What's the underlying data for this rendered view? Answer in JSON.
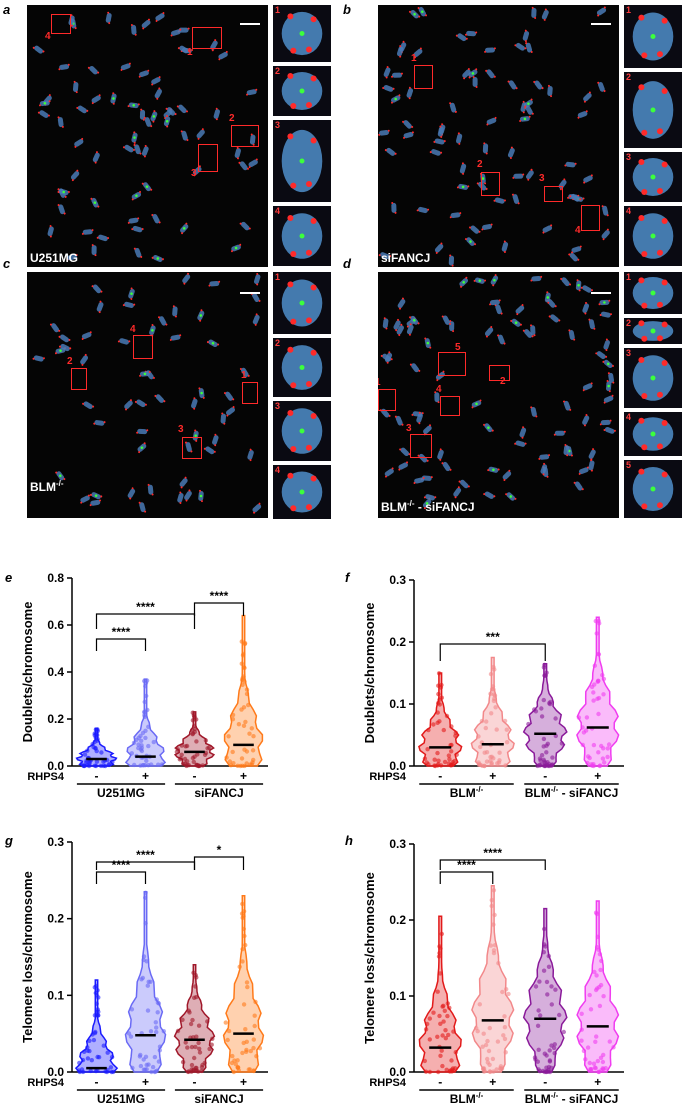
{
  "panels": {
    "a": {
      "letter": "a",
      "condition": "U251MG",
      "box_numbers": [
        "4",
        "1",
        "2",
        "3"
      ],
      "inset_numbers": [
        "1",
        "2",
        "3",
        "4"
      ]
    },
    "b": {
      "letter": "b",
      "condition": "siFANCJ",
      "box_numbers": [
        "1",
        "2",
        "3",
        "4"
      ],
      "inset_numbers": [
        "1",
        "2",
        "3",
        "4"
      ]
    },
    "c": {
      "letter": "c",
      "condition": "BLM",
      "condition_sup": "-/-",
      "box_numbers": [
        "4",
        "2",
        "1",
        "3"
      ],
      "inset_numbers": [
        "1",
        "2",
        "3",
        "4"
      ]
    },
    "d": {
      "letter": "d",
      "condition": "BLM",
      "condition_sup": "-/-",
      "condition_suffix": "- siFANCJ",
      "box_numbers": [
        "5",
        "2",
        "1",
        "4",
        "3"
      ],
      "inset_numbers": [
        "1",
        "2",
        "3",
        "4",
        "5"
      ]
    },
    "e": {
      "letter": "e"
    },
    "f": {
      "letter": "f"
    },
    "g": {
      "letter": "g"
    },
    "h": {
      "letter": "h"
    }
  },
  "chart_data": [
    {
      "id": "e",
      "type": "violin",
      "ylabel": "Doublets/chromosome",
      "ylim": [
        0,
        0.8
      ],
      "yticks": [
        "0.0",
        "0.2",
        "0.4",
        "0.6",
        "0.8"
      ],
      "treatment_label": "RHPS4",
      "treatment_marks": [
        "-",
        "+",
        "-",
        "+"
      ],
      "groups": [
        {
          "label": "U251MG",
          "span": [
            0,
            1
          ]
        },
        {
          "label": "siFANCJ",
          "span": [
            2,
            3
          ]
        }
      ],
      "series": [
        {
          "values_median": 0.03,
          "max": 0.16,
          "color": "#1a1aff"
        },
        {
          "values_median": 0.04,
          "max": 0.37,
          "color": "#6a6af5"
        },
        {
          "values_median": 0.06,
          "max": 0.23,
          "color": "#a0182a"
        },
        {
          "values_median": 0.09,
          "max": 0.64,
          "color": "#ff7a1a"
        }
      ],
      "significance": [
        {
          "from": 0,
          "to": 1,
          "label": "****"
        },
        {
          "from": 0,
          "to": 2,
          "label": "****"
        },
        {
          "from": 2,
          "to": 3,
          "label": "****"
        }
      ]
    },
    {
      "id": "f",
      "type": "violin",
      "ylabel": "Doublets/chromosome",
      "ylim": [
        0,
        0.3
      ],
      "yticks": [
        "0.0",
        "0.1",
        "0.2",
        "0.3"
      ],
      "treatment_label": "RHPS4",
      "treatment_marks": [
        "-",
        "+",
        "-",
        "+"
      ],
      "groups": [
        {
          "label": "BLM",
          "sup": "-/-",
          "span": [
            0,
            1
          ]
        },
        {
          "label": "BLM",
          "sup": "-/-",
          "suffix": "- siFANCJ",
          "span": [
            2,
            3
          ]
        }
      ],
      "series": [
        {
          "values_median": 0.03,
          "max": 0.15,
          "color": "#e21a1a"
        },
        {
          "values_median": 0.035,
          "max": 0.175,
          "color": "#f2888a"
        },
        {
          "values_median": 0.052,
          "max": 0.165,
          "color": "#8a1a9a"
        },
        {
          "values_median": 0.062,
          "max": 0.24,
          "color": "#f03df0"
        }
      ],
      "significance": [
        {
          "from": 0,
          "to": 2,
          "label": "***"
        }
      ]
    },
    {
      "id": "g",
      "type": "violin",
      "ylabel": "Telomere loss/chromosome",
      "ylim": [
        0,
        0.3
      ],
      "yticks": [
        "0.0",
        "0.1",
        "0.2",
        "0.3"
      ],
      "treatment_label": "RHPS4",
      "treatment_marks": [
        "-",
        "+",
        "-",
        "+"
      ],
      "groups": [
        {
          "label": "U251MG",
          "span": [
            0,
            1
          ]
        },
        {
          "label": "siFANCJ",
          "span": [
            2,
            3
          ]
        }
      ],
      "series": [
        {
          "values_median": 0.005,
          "max": 0.12,
          "color": "#1a1aff"
        },
        {
          "values_median": 0.048,
          "max": 0.235,
          "color": "#6a6af5"
        },
        {
          "values_median": 0.042,
          "max": 0.14,
          "color": "#a0182a"
        },
        {
          "values_median": 0.05,
          "max": 0.23,
          "color": "#ff7a1a"
        }
      ],
      "significance": [
        {
          "from": 0,
          "to": 1,
          "label": "****"
        },
        {
          "from": 0,
          "to": 2,
          "label": "****"
        },
        {
          "from": 2,
          "to": 3,
          "label": "*"
        }
      ]
    },
    {
      "id": "h",
      "type": "violin",
      "ylabel": "Telomere loss/chromosome",
      "ylim": [
        0,
        0.3
      ],
      "yticks": [
        "0.0",
        "0.1",
        "0.2",
        "0.3"
      ],
      "treatment_label": "RHPS4",
      "treatment_marks": [
        "-",
        "+",
        "-",
        "+"
      ],
      "groups": [
        {
          "label": "BLM",
          "sup": "-/-",
          "span": [
            0,
            1
          ]
        },
        {
          "label": "BLM",
          "sup": "-/-",
          "suffix": "- siFANCJ",
          "span": [
            2,
            3
          ]
        }
      ],
      "series": [
        {
          "values_median": 0.032,
          "max": 0.205,
          "color": "#e21a1a"
        },
        {
          "values_median": 0.068,
          "max": 0.245,
          "color": "#f2888a"
        },
        {
          "values_median": 0.07,
          "max": 0.215,
          "color": "#8a1a9a"
        },
        {
          "values_median": 0.06,
          "max": 0.225,
          "color": "#f03df0"
        }
      ],
      "significance": [
        {
          "from": 0,
          "to": 1,
          "label": "****"
        },
        {
          "from": 0,
          "to": 2,
          "label": "****"
        }
      ]
    }
  ]
}
